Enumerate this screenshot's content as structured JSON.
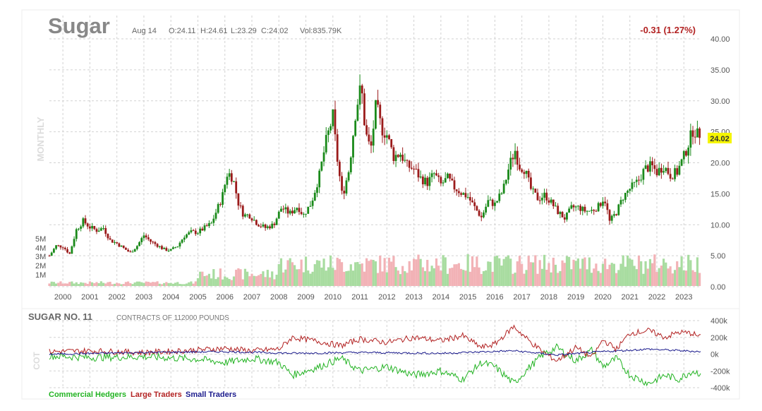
{
  "header": {
    "symbol": "Sugar",
    "date": "Aug 14",
    "open": "O:24.11",
    "high": "H:24.61",
    "low": "L:23.29",
    "close": "C:24.02",
    "volume": "Vol:835.79K",
    "change": "-0.31 (1.27%)",
    "timeframe": "MONTHLY",
    "last_price_tag": "24.02"
  },
  "cot": {
    "title": "SUGAR NO. 11",
    "subtitle": "CONTRACTS OF 112000 POUNDS",
    "side_label": "COT",
    "legend": [
      {
        "name": "Commercial Hedgers",
        "color": "#22b322"
      },
      {
        "name": "Large Traders",
        "color": "#b22222"
      },
      {
        "name": "Small Traders",
        "color": "#1a1a8c"
      }
    ],
    "y_ticks": [
      "400k",
      "200k",
      "0k",
      "-200k",
      "-400k"
    ],
    "y_tick_values": [
      400000,
      200000,
      0,
      -200000,
      -400000
    ],
    "ylim": [
      -400000,
      400000
    ]
  },
  "colors": {
    "up": "#1a8a1a",
    "down": "#9b1b1b",
    "vol_up": "#a8dca0",
    "vol_down": "#f2b2b6",
    "grid": "#d2d2d2",
    "change": "#b22222",
    "tag": "#f5f500"
  },
  "chart_data": {
    "type": "candlestick",
    "title": "Sugar",
    "interval": "monthly",
    "price_ylim": [
      0,
      40
    ],
    "price_ticks": [
      "40.00",
      "35.00",
      "30.00",
      "25.00",
      "20.00",
      "15.00",
      "10.00",
      "5.00",
      "0.00"
    ],
    "volume_ticks": [
      "5M",
      "4M",
      "3M",
      "2M",
      "1M"
    ],
    "x_labels": [
      "2000",
      "2001",
      "2002",
      "2003",
      "2004",
      "2005",
      "2006",
      "2007",
      "2008",
      "2009",
      "2010",
      "2011",
      "2012",
      "2013",
      "2014",
      "2015",
      "2016",
      "2017",
      "2018",
      "2019",
      "2020",
      "2021",
      "2022",
      "2023"
    ],
    "price_anchors": [
      [
        1999.5,
        5.0
      ],
      [
        1999.75,
        6.6
      ],
      [
        2000.0,
        6.5
      ],
      [
        2000.25,
        5.3
      ],
      [
        2000.5,
        9.2
      ],
      [
        2000.75,
        10.6
      ],
      [
        2001.0,
        9.6
      ],
      [
        2001.25,
        9.1
      ],
      [
        2001.5,
        9.5
      ],
      [
        2001.75,
        7.5
      ],
      [
        2002.0,
        7.0
      ],
      [
        2002.25,
        6.2
      ],
      [
        2002.5,
        5.5
      ],
      [
        2002.75,
        6.6
      ],
      [
        2003.0,
        8.3
      ],
      [
        2003.25,
        7.3
      ],
      [
        2003.5,
        6.7
      ],
      [
        2003.75,
        6.0
      ],
      [
        2004.0,
        5.9
      ],
      [
        2004.25,
        6.6
      ],
      [
        2004.5,
        8.2
      ],
      [
        2004.75,
        8.8
      ],
      [
        2005.0,
        8.8
      ],
      [
        2005.5,
        10.2
      ],
      [
        2005.9,
        14.5
      ],
      [
        2006.1,
        18.5
      ],
      [
        2006.3,
        17.5
      ],
      [
        2006.5,
        13.5
      ],
      [
        2006.7,
        11.5
      ],
      [
        2006.9,
        11.6
      ],
      [
        2007.2,
        10.2
      ],
      [
        2007.5,
        9.5
      ],
      [
        2007.8,
        10.0
      ],
      [
        2008.1,
        12.8
      ],
      [
        2008.4,
        11.8
      ],
      [
        2008.7,
        13.0
      ],
      [
        2008.9,
        11.5
      ],
      [
        2009.2,
        13.5
      ],
      [
        2009.5,
        18.0
      ],
      [
        2009.75,
        23.5
      ],
      [
        2010.0,
        27.5
      ],
      [
        2010.15,
        21.0
      ],
      [
        2010.35,
        14.5
      ],
      [
        2010.6,
        19.0
      ],
      [
        2010.85,
        28.5
      ],
      [
        2011.05,
        32.5
      ],
      [
        2011.2,
        25.0
      ],
      [
        2011.4,
        22.0
      ],
      [
        2011.6,
        29.5
      ],
      [
        2011.8,
        25.5
      ],
      [
        2012.0,
        24.5
      ],
      [
        2012.25,
        21.0
      ],
      [
        2012.5,
        21.5
      ],
      [
        2012.75,
        19.5
      ],
      [
        2013.0,
        19.0
      ],
      [
        2013.25,
        17.5
      ],
      [
        2013.5,
        16.8
      ],
      [
        2013.75,
        18.2
      ],
      [
        2014.0,
        16.5
      ],
      [
        2014.25,
        17.5
      ],
      [
        2014.5,
        16.0
      ],
      [
        2014.75,
        15.2
      ],
      [
        2015.0,
        14.5
      ],
      [
        2015.25,
        12.8
      ],
      [
        2015.5,
        11.2
      ],
      [
        2015.75,
        13.8
      ],
      [
        2016.0,
        13.3
      ],
      [
        2016.3,
        15.5
      ],
      [
        2016.55,
        19.8
      ],
      [
        2016.75,
        22.0
      ],
      [
        2016.9,
        19.5
      ],
      [
        2017.1,
        19.0
      ],
      [
        2017.35,
        15.5
      ],
      [
        2017.6,
        14.2
      ],
      [
        2017.85,
        14.8
      ],
      [
        2018.1,
        13.5
      ],
      [
        2018.35,
        12.0
      ],
      [
        2018.6,
        11.0
      ],
      [
        2018.85,
        12.8
      ],
      [
        2019.1,
        12.8
      ],
      [
        2019.35,
        12.2
      ],
      [
        2019.6,
        12.3
      ],
      [
        2019.85,
        13.0
      ],
      [
        2020.05,
        14.5
      ],
      [
        2020.25,
        10.5
      ],
      [
        2020.5,
        12.0
      ],
      [
        2020.75,
        14.5
      ],
      [
        2021.0,
        15.8
      ],
      [
        2021.3,
        17.0
      ],
      [
        2021.55,
        19.0
      ],
      [
        2021.8,
        19.5
      ],
      [
        2022.0,
        18.5
      ],
      [
        2022.25,
        19.5
      ],
      [
        2022.5,
        18.0
      ],
      [
        2022.75,
        18.5
      ],
      [
        2023.0,
        21.0
      ],
      [
        2023.2,
        23.5
      ],
      [
        2023.35,
        25.5
      ],
      [
        2023.5,
        24.5
      ],
      [
        2023.62,
        24.02
      ]
    ],
    "cot_series_anchors": {
      "Commercial Hedgers": [
        [
          1999.5,
          -20000
        ],
        [
          2001.0,
          -40000
        ],
        [
          2003.0,
          -30000
        ],
        [
          2005.0,
          -60000
        ],
        [
          2006.0,
          -100000
        ],
        [
          2007.0,
          -50000
        ],
        [
          2008.0,
          -100000
        ],
        [
          2008.5,
          -250000
        ],
        [
          2009.5,
          -150000
        ],
        [
          2010.3,
          -50000
        ],
        [
          2011.0,
          -200000
        ],
        [
          2012.0,
          -150000
        ],
        [
          2013.0,
          -250000
        ],
        [
          2014.0,
          -200000
        ],
        [
          2014.8,
          -300000
        ],
        [
          2015.5,
          -100000
        ],
        [
          2016.0,
          -150000
        ],
        [
          2016.7,
          -350000
        ],
        [
          2017.3,
          -150000
        ],
        [
          2017.8,
          0
        ],
        [
          2018.3,
          80000
        ],
        [
          2019.0,
          -80000
        ],
        [
          2019.6,
          50000
        ],
        [
          2020.0,
          -150000
        ],
        [
          2020.5,
          -50000
        ],
        [
          2021.0,
          -250000
        ],
        [
          2021.7,
          -350000
        ],
        [
          2022.3,
          -250000
        ],
        [
          2022.8,
          -300000
        ],
        [
          2023.3,
          -200000
        ],
        [
          2023.62,
          -230000
        ]
      ],
      "Large Traders": [
        [
          1999.5,
          30000
        ],
        [
          2001.0,
          40000
        ],
        [
          2003.0,
          20000
        ],
        [
          2005.0,
          50000
        ],
        [
          2006.0,
          70000
        ],
        [
          2007.0,
          40000
        ],
        [
          2008.0,
          60000
        ],
        [
          2008.5,
          200000
        ],
        [
          2009.5,
          150000
        ],
        [
          2010.3,
          100000
        ],
        [
          2011.0,
          180000
        ],
        [
          2012.0,
          140000
        ],
        [
          2013.0,
          200000
        ],
        [
          2014.0,
          160000
        ],
        [
          2014.8,
          220000
        ],
        [
          2015.5,
          80000
        ],
        [
          2016.0,
          120000
        ],
        [
          2016.7,
          330000
        ],
        [
          2017.3,
          150000
        ],
        [
          2017.8,
          20000
        ],
        [
          2018.3,
          -80000
        ],
        [
          2019.0,
          80000
        ],
        [
          2019.6,
          -40000
        ],
        [
          2020.0,
          170000
        ],
        [
          2020.5,
          60000
        ],
        [
          2021.0,
          250000
        ],
        [
          2021.7,
          280000
        ],
        [
          2022.3,
          200000
        ],
        [
          2022.8,
          260000
        ],
        [
          2023.3,
          250000
        ],
        [
          2023.62,
          200000
        ]
      ],
      "Small Traders": [
        [
          1999.5,
          0
        ],
        [
          2003.0,
          20000
        ],
        [
          2006.0,
          30000
        ],
        [
          2008.5,
          10000
        ],
        [
          2011.0,
          20000
        ],
        [
          2014.0,
          10000
        ],
        [
          2016.7,
          40000
        ],
        [
          2018.3,
          -10000
        ],
        [
          2020.0,
          30000
        ],
        [
          2021.7,
          60000
        ],
        [
          2023.62,
          30000
        ]
      ]
    }
  }
}
